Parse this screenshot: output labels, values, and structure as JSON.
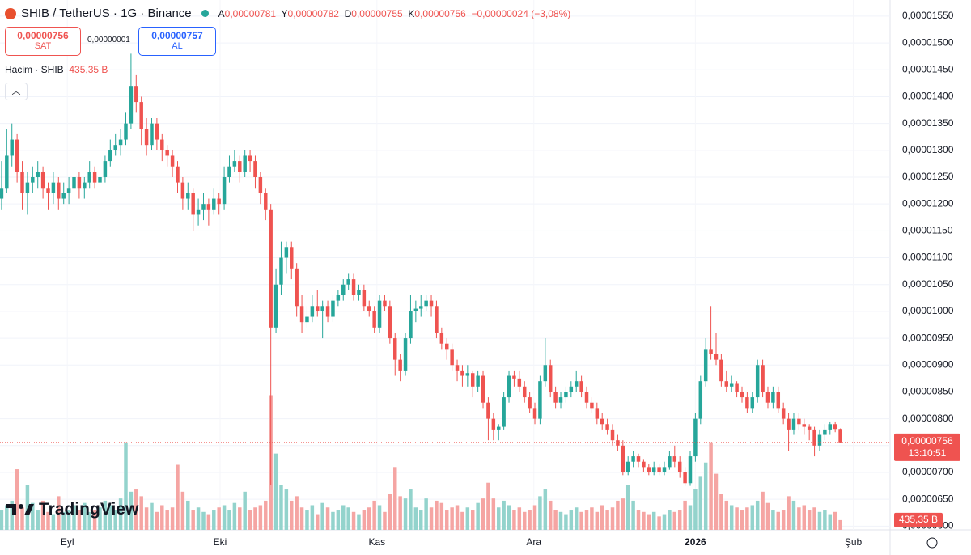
{
  "header": {
    "symbol": "SHIB / TetherUS · 1G · Binance",
    "ohlc": [
      {
        "key": "A",
        "value": "0,00000781"
      },
      {
        "key": "Y",
        "value": "0,00000782"
      },
      {
        "key": "D",
        "value": "0,00000755"
      },
      {
        "key": "K",
        "value": "0,00000756"
      }
    ],
    "change": "−0,00000024 (−3,08%)",
    "sell": {
      "price": "0,00000756",
      "label": "SAT"
    },
    "spread": "0,00000001",
    "buy": {
      "price": "0,00000757",
      "label": "AL"
    },
    "volume_title": "Hacim · SHIB",
    "volume_value": "435,35 B",
    "countdown": "13:10:51",
    "brand": "TradingView"
  },
  "chart_data": {
    "type": "candlestick",
    "up_color": "#26a69a",
    "down_color": "#ef5350",
    "volume_up_color": "#93d3cc",
    "volume_down_color": "#f5a5a3",
    "grid": true,
    "ylim": [
      5.93e-06,
      1.58e-05
    ],
    "yticks": [
      {
        "value": 6e-06,
        "label": "0,00000600"
      },
      {
        "value": 6.5e-06,
        "label": "0,00000650"
      },
      {
        "value": 7e-06,
        "label": "0,00000700"
      },
      {
        "value": 7.5e-06,
        "label": "0,00000750"
      },
      {
        "value": 8e-06,
        "label": "0,00000800"
      },
      {
        "value": 8.5e-06,
        "label": "0,00000850"
      },
      {
        "value": 9e-06,
        "label": "0,00000900"
      },
      {
        "value": 9.5e-06,
        "label": "0,00000950"
      },
      {
        "value": 1e-05,
        "label": "0,00001000"
      },
      {
        "value": 1.05e-05,
        "label": "0,00001050"
      },
      {
        "value": 1.1e-05,
        "label": "0,00001100"
      },
      {
        "value": 1.15e-05,
        "label": "0,00001150"
      },
      {
        "value": 1.2e-05,
        "label": "0,00001200"
      },
      {
        "value": 1.25e-05,
        "label": "0,00001250"
      },
      {
        "value": 1.3e-05,
        "label": "0,00001300"
      },
      {
        "value": 1.35e-05,
        "label": "0,00001350"
      },
      {
        "value": 1.4e-05,
        "label": "0,00001400"
      },
      {
        "value": 1.45e-05,
        "label": "0,00001450"
      },
      {
        "value": 1.5e-05,
        "label": "0,00001500"
      },
      {
        "value": 1.55e-05,
        "label": "0,00001550"
      }
    ],
    "xlim": [
      -0.3,
      171.6
    ],
    "xticks": [
      {
        "value": 12.7,
        "label": "Eyl"
      },
      {
        "value": 42.2,
        "label": "Eki"
      },
      {
        "value": 72.5,
        "label": "Kas"
      },
      {
        "value": 102.8,
        "label": "Ara"
      },
      {
        "value": 134,
        "label": "2026"
      },
      {
        "value": 164.5,
        "label": "Şub"
      }
    ],
    "y2lim": [
      0,
      23600
    ],
    "ohlc": [
      [
        1.21e-05,
        1.28e-05,
        1.19e-05,
        1.23e-05
      ],
      [
        1.23e-05,
        1.34e-05,
        1.22e-05,
        1.29e-05
      ],
      [
        1.29e-05,
        1.35e-05,
        1.27e-05,
        1.32e-05
      ],
      [
        1.32e-05,
        1.33e-05,
        1.24e-05,
        1.26e-05
      ],
      [
        1.26e-05,
        1.28e-05,
        1.19e-05,
        1.22e-05
      ],
      [
        1.22e-05,
        1.26e-05,
        1.18e-05,
        1.24e-05
      ],
      [
        1.24e-05,
        1.27e-05,
        1.22e-05,
        1.25e-05
      ],
      [
        1.25e-05,
        1.28e-05,
        1.23e-05,
        1.26e-05
      ],
      [
        1.26e-05,
        1.27e-05,
        1.21e-05,
        1.23e-05
      ],
      [
        1.23e-05,
        1.24e-05,
        1.19e-05,
        1.22e-05
      ],
      [
        1.22e-05,
        1.26e-05,
        1.2e-05,
        1.24e-05
      ],
      [
        1.24e-05,
        1.25e-05,
        1.19e-05,
        1.21e-05
      ],
      [
        1.21e-05,
        1.24e-05,
        1.2e-05,
        1.22e-05
      ],
      [
        1.22e-05,
        1.25e-05,
        1.2e-05,
        1.23e-05
      ],
      [
        1.23e-05,
        1.27e-05,
        1.22e-05,
        1.25e-05
      ],
      [
        1.25e-05,
        1.26e-05,
        1.21e-05,
        1.23e-05
      ],
      [
        1.23e-05,
        1.25e-05,
        1.21e-05,
        1.24e-05
      ],
      [
        1.24e-05,
        1.28e-05,
        1.23e-05,
        1.26e-05
      ],
      [
        1.26e-05,
        1.27e-05,
        1.23e-05,
        1.24e-05
      ],
      [
        1.24e-05,
        1.27e-05,
        1.23e-05,
        1.25e-05
      ],
      [
        1.25e-05,
        1.29e-05,
        1.24e-05,
        1.28e-05
      ],
      [
        1.28e-05,
        1.32e-05,
        1.27e-05,
        1.3e-05
      ],
      [
        1.3e-05,
        1.33e-05,
        1.29e-05,
        1.31e-05
      ],
      [
        1.31e-05,
        1.34e-05,
        1.29e-05,
        1.32e-05
      ],
      [
        1.32e-05,
        1.37e-05,
        1.31e-05,
        1.35e-05
      ],
      [
        1.35e-05,
        1.48e-05,
        1.34e-05,
        1.42e-05
      ],
      [
        1.42e-05,
        1.44e-05,
        1.37e-05,
        1.39e-05
      ],
      [
        1.39e-05,
        1.4e-05,
        1.31e-05,
        1.34e-05
      ],
      [
        1.34e-05,
        1.36e-05,
        1.29e-05,
        1.31e-05
      ],
      [
        1.31e-05,
        1.36e-05,
        1.3e-05,
        1.35e-05
      ],
      [
        1.35e-05,
        1.36e-05,
        1.3e-05,
        1.32e-05
      ],
      [
        1.32e-05,
        1.33e-05,
        1.28e-05,
        1.3e-05
      ],
      [
        1.3e-05,
        1.31e-05,
        1.27e-05,
        1.29e-05
      ],
      [
        1.29e-05,
        1.3e-05,
        1.25e-05,
        1.27e-05
      ],
      [
        1.27e-05,
        1.28e-05,
        1.22e-05,
        1.24e-05
      ],
      [
        1.24e-05,
        1.25e-05,
        1.19e-05,
        1.21e-05
      ],
      [
        1.21e-05,
        1.24e-05,
        1.19e-05,
        1.22e-05
      ],
      [
        1.22e-05,
        1.23e-05,
        1.15e-05,
        1.18e-05
      ],
      [
        1.18e-05,
        1.21e-05,
        1.16e-05,
        1.19e-05
      ],
      [
        1.19e-05,
        1.22e-05,
        1.17e-05,
        1.2e-05
      ],
      [
        1.2e-05,
        1.21e-05,
        1.16e-05,
        1.19e-05
      ],
      [
        1.19e-05,
        1.23e-05,
        1.18e-05,
        1.21e-05
      ],
      [
        1.21e-05,
        1.22e-05,
        1.18e-05,
        1.2e-05
      ],
      [
        1.2e-05,
        1.27e-05,
        1.19e-05,
        1.25e-05
      ],
      [
        1.25e-05,
        1.29e-05,
        1.24e-05,
        1.27e-05
      ],
      [
        1.27e-05,
        1.3e-05,
        1.26e-05,
        1.28e-05
      ],
      [
        1.28e-05,
        1.29e-05,
        1.24e-05,
        1.26e-05
      ],
      [
        1.26e-05,
        1.3e-05,
        1.25e-05,
        1.29e-05
      ],
      [
        1.29e-05,
        1.3e-05,
        1.26e-05,
        1.28e-05
      ],
      [
        1.28e-05,
        1.29e-05,
        1.23e-05,
        1.25e-05
      ],
      [
        1.25e-05,
        1.26e-05,
        1.2e-05,
        1.22e-05
      ],
      [
        1.22e-05,
        1.23e-05,
        1.17e-05,
        1.19e-05
      ],
      [
        1.19e-05,
        1.2e-05,
        6.76e-06,
        9.7e-06
      ],
      [
        9.7e-06,
        1.08e-05,
        9.6e-06,
        1.05e-05
      ],
      [
        1.05e-05,
        1.13e-05,
        1.03e-05,
        1.1e-05
      ],
      [
        1.1e-05,
        1.13e-05,
        1.07e-05,
        1.12e-05
      ],
      [
        1.12e-05,
        1.13e-05,
        1.06e-05,
        1.08e-05
      ],
      [
        1.08e-05,
        1.09e-05,
        9.9e-06,
        1.01e-05
      ],
      [
        1.01e-05,
        1.03e-05,
        9.6e-06,
        9.8e-06
      ],
      [
        9.8e-06,
        1.01e-05,
        9.7e-06,
        9.9e-06
      ],
      [
        9.9e-06,
        1.03e-05,
        9.8e-06,
        1.01e-05
      ],
      [
        1.01e-05,
        1.04e-05,
        9.9e-06,
        1e-05
      ],
      [
        1e-05,
        1.02e-05,
        9.5e-06,
        1.01e-05
      ],
      [
        1.01e-05,
        1.02e-05,
        9.8e-06,
        9.9e-06
      ],
      [
        9.9e-06,
        1.03e-05,
        9.8e-06,
        1.02e-05
      ],
      [
        1.02e-05,
        1.04e-05,
        1.01e-05,
        1.03e-05
      ],
      [
        1.03e-05,
        1.06e-05,
        1.02e-05,
        1.05e-05
      ],
      [
        1.05e-05,
        1.07e-05,
        1.04e-05,
        1.06e-05
      ],
      [
        1.06e-05,
        1.07e-05,
        1.02e-05,
        1.03e-05
      ],
      [
        1.03e-05,
        1.05e-05,
        1.02e-05,
        1.04e-05
      ],
      [
        1.04e-05,
        1.05e-05,
        1e-05,
        1.01e-05
      ],
      [
        1.01e-05,
        1.02e-05,
        9.9e-06,
        1e-05
      ],
      [
        1e-05,
        1.01e-05,
        9.6e-06,
        9.7e-06
      ],
      [
        9.7e-06,
        1.03e-05,
        9.6e-06,
        1.02e-05
      ],
      [
        1.02e-05,
        1.03e-05,
        1e-05,
        1.01e-05
      ],
      [
        1.01e-05,
        1.02e-05,
        9.4e-06,
        9.5e-06
      ],
      [
        9.5e-06,
        9.6e-06,
        8.8e-06,
        9.1e-06
      ],
      [
        9.1e-06,
        9.2e-06,
        8.7e-06,
        8.9e-06
      ],
      [
        8.9e-06,
        9.6e-06,
        8.8e-06,
        9.5e-06
      ],
      [
        9.5e-06,
        1.03e-05,
        9.4e-06,
        1e-05
      ],
      [
        1e-05,
        1.02e-05,
        9.8e-06,
        1.005e-05
      ],
      [
        1.005e-05,
        1.03e-05,
        9.9e-06,
        1.01e-05
      ],
      [
        1.01e-05,
        1.03e-05,
        1e-05,
        1.02e-05
      ],
      [
        1.02e-05,
        1.03e-05,
        9.9e-06,
        1.01e-05
      ],
      [
        1.01e-05,
        1.02e-05,
        9.5e-06,
        9.6e-06
      ],
      [
        9.6e-06,
        9.7e-06,
        9.3e-06,
        9.4e-06
      ],
      [
        9.4e-06,
        9.5e-06,
        9.1e-06,
        9.3e-06
      ],
      [
        9.3e-06,
        9.4e-06,
        8.9e-06,
        9e-06
      ],
      [
        9e-06,
        9.1e-06,
        8.7e-06,
        8.9e-06
      ],
      [
        8.9e-06,
        9e-06,
        8.6e-06,
        8.8e-06
      ],
      [
        8.8e-06,
        9e-06,
        8.6e-06,
        8.85e-06
      ],
      [
        8.85e-06,
        8.9e-06,
        8.4e-06,
        8.6e-06
      ],
      [
        8.6e-06,
        8.9e-06,
        8.5e-06,
        8.8e-06
      ],
      [
        8.8e-06,
        8.9e-06,
        8.2e-06,
        8.3e-06
      ],
      [
        8.3e-06,
        8.4e-06,
        7.6e-06,
        8e-06
      ],
      [
        8e-06,
        8.1e-06,
        7.6e-06,
        7.8e-06
      ],
      [
        7.8e-06,
        7.9e-06,
        7.6e-06,
        7.85e-06
      ],
      [
        7.85e-06,
        8.5e-06,
        7.8e-06,
        8.4e-06
      ],
      [
        8.4e-06,
        8.9e-06,
        8.3e-06,
        8.8e-06
      ],
      [
        8.8e-06,
        8.9e-06,
        8.6e-06,
        8.75e-06
      ],
      [
        8.75e-06,
        8.9e-06,
        8.5e-06,
        8.6e-06
      ],
      [
        8.6e-06,
        8.7e-06,
        8.3e-06,
        8.4e-06
      ],
      [
        8.4e-06,
        8.5e-06,
        8.1e-06,
        8.2e-06
      ],
      [
        8.2e-06,
        8.3e-06,
        7.9e-06,
        8e-06
      ],
      [
        8e-06,
        8.8e-06,
        7.9e-06,
        8.7e-06
      ],
      [
        8.7e-06,
        9.5e-06,
        8.6e-06,
        9e-06
      ],
      [
        9e-06,
        9.1e-06,
        8.4e-06,
        8.5e-06
      ],
      [
        8.5e-06,
        8.6e-06,
        8.2e-06,
        8.3e-06
      ],
      [
        8.3e-06,
        8.5e-06,
        8.2e-06,
        8.4e-06
      ],
      [
        8.4e-06,
        8.6e-06,
        8.3e-06,
        8.5e-06
      ],
      [
        8.5e-06,
        8.7e-06,
        8.4e-06,
        8.6e-06
      ],
      [
        8.6e-06,
        8.9e-06,
        8.5e-06,
        8.7e-06
      ],
      [
        8.7e-06,
        8.8e-06,
        8.4e-06,
        8.5e-06
      ],
      [
        8.5e-06,
        8.6e-06,
        8.2e-06,
        8.3e-06
      ],
      [
        8.3e-06,
        8.4e-06,
        8.1e-06,
        8.2e-06
      ],
      [
        8.2e-06,
        8.3e-06,
        7.9e-06,
        8e-06
      ],
      [
        8e-06,
        8.1e-06,
        7.8e-06,
        7.9e-06
      ],
      [
        7.9e-06,
        8e-06,
        7.7e-06,
        7.8e-06
      ],
      [
        7.8e-06,
        7.9e-06,
        7.5e-06,
        7.6e-06
      ],
      [
        7.6e-06,
        7.7e-06,
        7.4e-06,
        7.5e-06
      ],
      [
        7.5e-06,
        7.6e-06,
        6.95e-06,
        7e-06
      ],
      [
        7e-06,
        7.3e-06,
        6.95e-06,
        7.2e-06
      ],
      [
        7.2e-06,
        7.4e-06,
        7.1e-06,
        7.3e-06
      ],
      [
        7.3e-06,
        7.35e-06,
        7.1e-06,
        7.2e-06
      ],
      [
        7.2e-06,
        7.25e-06,
        7e-06,
        7.1e-06
      ],
      [
        7.1e-06,
        7.15e-06,
        6.95e-06,
        7e-06
      ],
      [
        7e-06,
        7.2e-06,
        6.95e-06,
        7.1e-06
      ],
      [
        7.1e-06,
        7.15e-06,
        6.95e-06,
        7e-06
      ],
      [
        7e-06,
        7.2e-06,
        6.95e-06,
        7.1e-06
      ],
      [
        7.1e-06,
        7.4e-06,
        7.05e-06,
        7.3e-06
      ],
      [
        7.3e-06,
        7.5e-06,
        7.1e-06,
        7.2e-06
      ],
      [
        7.2e-06,
        7.3e-06,
        6.9e-06,
        7e-06
      ],
      [
        7e-06,
        7.1e-06,
        6.75e-06,
        6.8e-06
      ],
      [
        6.8e-06,
        7.4e-06,
        6.75e-06,
        7.3e-06
      ],
      [
        7.3e-06,
        8.1e-06,
        7.2e-06,
        8e-06
      ],
      [
        8e-06,
        8.8e-06,
        7.9e-06,
        8.7e-06
      ],
      [
        8.7e-06,
        9.5e-06,
        8.6e-06,
        9.3e-06
      ],
      [
        9.3e-06,
        1.01e-05,
        9.1e-06,
        9.2e-06
      ],
      [
        9.2e-06,
        9.6e-06,
        9e-06,
        9.1e-06
      ],
      [
        9.1e-06,
        9.2e-06,
        8.6e-06,
        8.7e-06
      ],
      [
        8.7e-06,
        8.9e-06,
        8.5e-06,
        8.6e-06
      ],
      [
        8.6e-06,
        8.8e-06,
        8.5e-06,
        8.65e-06
      ],
      [
        8.65e-06,
        8.7e-06,
        8.4e-06,
        8.5e-06
      ],
      [
        8.5e-06,
        8.6e-06,
        8.3e-06,
        8.4e-06
      ],
      [
        8.4e-06,
        8.5e-06,
        8.1e-06,
        8.2e-06
      ],
      [
        8.2e-06,
        8.5e-06,
        8.1e-06,
        8.4e-06
      ],
      [
        8.4e-06,
        9.1e-06,
        8.3e-06,
        9e-06
      ],
      [
        9e-06,
        9.1e-06,
        8.4e-06,
        8.5e-06
      ],
      [
        8.5e-06,
        8.6e-06,
        8.2e-06,
        8.3e-06
      ],
      [
        8.3e-06,
        8.6e-06,
        8.2e-06,
        8.5e-06
      ],
      [
        8.5e-06,
        8.6e-06,
        8.1e-06,
        8.2e-06
      ],
      [
        8.2e-06,
        8.3e-06,
        7.9e-06,
        8e-06
      ],
      [
        8e-06,
        8.1e-06,
        7.4e-06,
        7.8e-06
      ],
      [
        7.8e-06,
        8.1e-06,
        7.7e-06,
        8e-06
      ],
      [
        8e-06,
        8.1e-06,
        7.8e-06,
        7.9e-06
      ],
      [
        7.9e-06,
        8e-06,
        7.7e-06,
        7.85e-06
      ],
      [
        7.85e-06,
        7.9e-06,
        7.6e-06,
        7.8e-06
      ],
      [
        7.8e-06,
        7.85e-06,
        7.3e-06,
        7.5e-06
      ],
      [
        7.5e-06,
        7.8e-06,
        7.4e-06,
        7.7e-06
      ],
      [
        7.7e-06,
        7.9e-06,
        7.6e-06,
        7.8e-06
      ],
      [
        7.8e-06,
        7.95e-06,
        7.7e-06,
        7.9e-06
      ],
      [
        7.9e-06,
        7.95e-06,
        7.75e-06,
        7.81e-06
      ],
      [
        7.81e-06,
        7.82e-06,
        7.55e-06,
        7.56e-06
      ]
    ],
    "volume": [
      900,
      1100,
      1300,
      2700,
      1000,
      2000,
      1200,
      900,
      1300,
      800,
      700,
      1500,
      800,
      900,
      1100,
      900,
      1200,
      800,
      900,
      1000,
      1300,
      1100,
      900,
      1400,
      3900,
      1700,
      1800,
      1500,
      1000,
      1200,
      800,
      1100,
      900,
      1000,
      2900,
      1700,
      1300,
      900,
      1000,
      800,
      700,
      900,
      1000,
      1100,
      900,
      1200,
      1000,
      1700,
      900,
      1000,
      1100,
      1300,
      6000,
      3400,
      2000,
      1800,
      1300,
      1500,
      1000,
      900,
      1100,
      700,
      1200,
      1000,
      800,
      900,
      1100,
      1000,
      800,
      700,
      900,
      1000,
      1300,
      1100,
      800,
      1600,
      2800,
      1500,
      1400,
      1800,
      1000,
      900,
      1400,
      1000,
      1300,
      1200,
      900,
      1000,
      1100,
      800,
      1000,
      900,
      1200,
      1400,
      2100,
      1400,
      1000,
      1300,
      1100,
      900,
      1000,
      800,
      900,
      1100,
      1500,
      1800,
      1300,
      900,
      800,
      700,
      900,
      1000,
      800,
      900,
      1000,
      800,
      1100,
      900,
      1000,
      1300,
      1400,
      2000,
      1300,
      900,
      800,
      700,
      800,
      600,
      700,
      900,
      800,
      900,
      1300,
      1100,
      1800,
      2400,
      3000,
      3900,
      2500,
      1600,
      1300,
      1100,
      1000,
      900,
      1000,
      1100,
      1300,
      1700,
      1200,
      900,
      800,
      900,
      1500,
      1300,
      1000,
      1100,
      900,
      1000,
      800,
      900,
      700,
      800,
      435.35
    ]
  }
}
